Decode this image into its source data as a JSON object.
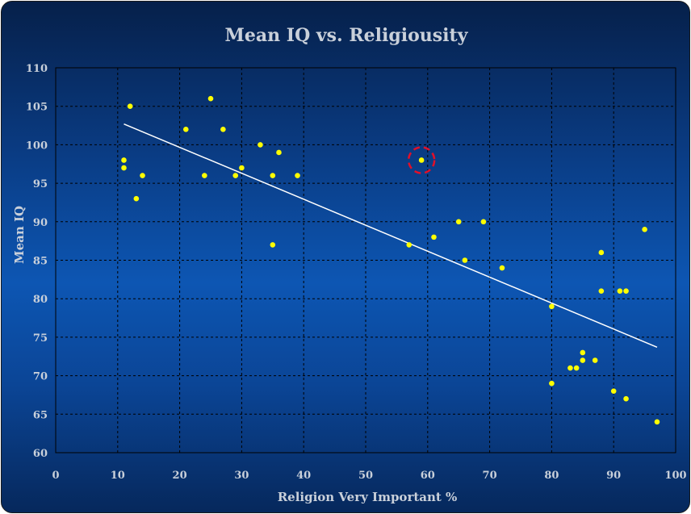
{
  "chart_data": {
    "type": "scatter",
    "title": "Mean IQ vs. Religiousity",
    "xlabel": "Religion Very Important %",
    "ylabel": "Mean IQ",
    "xlim": [
      0,
      100
    ],
    "ylim": [
      60,
      110
    ],
    "xticks": [
      "0",
      "10",
      "20",
      "30",
      "40",
      "50",
      "60",
      "70",
      "80",
      "90",
      "100"
    ],
    "yticks": [
      "60",
      "65",
      "70",
      "75",
      "80",
      "85",
      "90",
      "95",
      "100",
      "105",
      "110"
    ],
    "grid": true,
    "point_color": "#ffff00",
    "trendline_color": "#ffffff",
    "highlight_color": "#e0102a",
    "points": [
      [
        11,
        98
      ],
      [
        11,
        97
      ],
      [
        12,
        105
      ],
      [
        13,
        93
      ],
      [
        14,
        96
      ],
      [
        21,
        102
      ],
      [
        24,
        96
      ],
      [
        25,
        106
      ],
      [
        27,
        102
      ],
      [
        29,
        96
      ],
      [
        30,
        97
      ],
      [
        33,
        100
      ],
      [
        35,
        96
      ],
      [
        35,
        87
      ],
      [
        36,
        99
      ],
      [
        39,
        96
      ],
      [
        57,
        87
      ],
      [
        59,
        98
      ],
      [
        61,
        88
      ],
      [
        65,
        90
      ],
      [
        66,
        85
      ],
      [
        69,
        90
      ],
      [
        72,
        84
      ],
      [
        80,
        79
      ],
      [
        80,
        69
      ],
      [
        83,
        71
      ],
      [
        84,
        71
      ],
      [
        85,
        73
      ],
      [
        85,
        72
      ],
      [
        87,
        72
      ],
      [
        88,
        86
      ],
      [
        88,
        81
      ],
      [
        90,
        68
      ],
      [
        91,
        81
      ],
      [
        92,
        81
      ],
      [
        92,
        67
      ],
      [
        95,
        89
      ],
      [
        97,
        64
      ]
    ],
    "trendline": {
      "x": [
        11,
        97
      ],
      "y": [
        102.7,
        73.7
      ]
    },
    "highlighted_point": [
      59,
      98
    ]
  }
}
